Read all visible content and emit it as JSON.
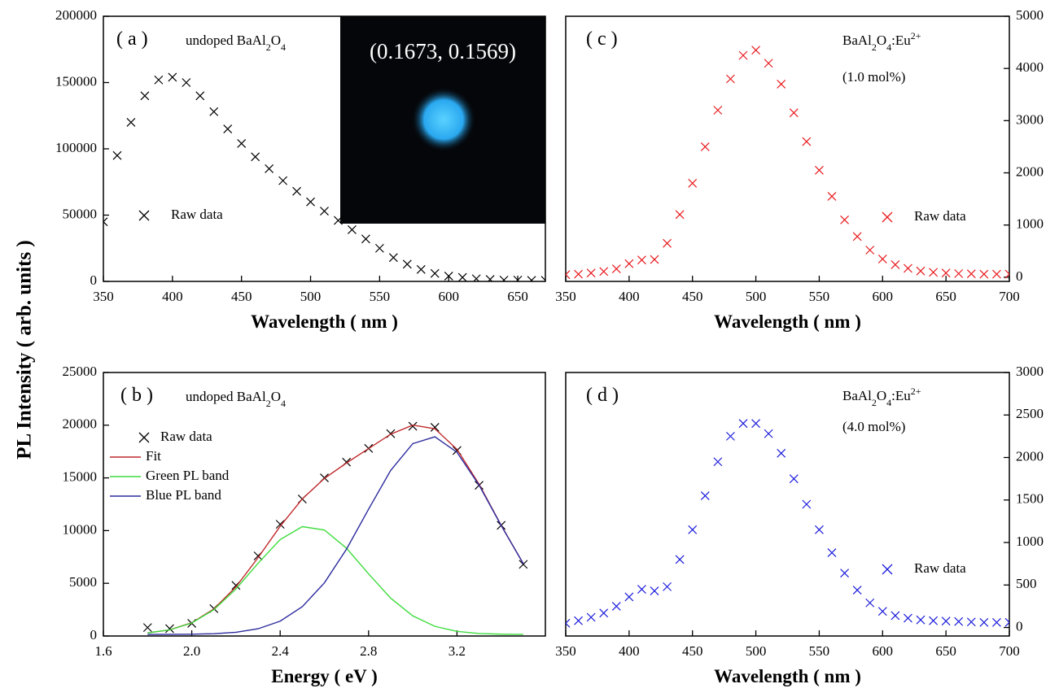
{
  "shared_ylabel": "PL Intensity ( arb. units )",
  "chart_data": [
    {
      "type": "scatter",
      "panel_label": "( a )",
      "sample_label": [
        {
          "text": "undoped BaAl"
        },
        {
          "text": "2",
          "script": "sub"
        },
        {
          "text": "O"
        },
        {
          "text": "4",
          "script": "sub"
        }
      ],
      "inset_label": "(0.1673, 0.1569)",
      "xlabel": "Wavelength ( nm )",
      "y_axis_side": "left",
      "xlim": [
        350,
        670
      ],
      "xticks": [
        350,
        400,
        450,
        500,
        550,
        600,
        650
      ],
      "ylim": [
        0,
        200000
      ],
      "yticks": [
        0,
        50000,
        100000,
        150000,
        200000
      ],
      "x": [
        350,
        360,
        370,
        380,
        390,
        400,
        410,
        420,
        430,
        440,
        450,
        460,
        470,
        480,
        490,
        500,
        510,
        520,
        530,
        540,
        550,
        560,
        570,
        580,
        590,
        600,
        610,
        620,
        630,
        640,
        650,
        660,
        670
      ],
      "series": [
        {
          "name": "Raw data",
          "color": "#000000",
          "mode": "markers",
          "values": [
            45000,
            95000,
            120000,
            140000,
            152000,
            154000,
            150000,
            140000,
            128000,
            115000,
            104000,
            94000,
            85000,
            76000,
            68000,
            60000,
            53000,
            46000,
            39000,
            32000,
            25000,
            18000,
            13000,
            9000,
            6000,
            4000,
            3000,
            2000,
            1500,
            1000,
            1000,
            800,
            800
          ]
        }
      ]
    },
    {
      "type": "line",
      "panel_label": "( b )",
      "sample_label": [
        {
          "text": "undoped BaAl"
        },
        {
          "text": "2",
          "script": "sub"
        },
        {
          "text": "O"
        },
        {
          "text": "4",
          "script": "sub"
        }
      ],
      "xlabel": "Energy ( eV )",
      "y_axis_side": "left",
      "xlim": [
        1.6,
        3.6
      ],
      "xticks": [
        1.6,
        {
          "value": 2,
          "label": "2.0"
        },
        2.4,
        2.8,
        3.2
      ],
      "ylim": [
        0,
        25000
      ],
      "yticks": [
        0,
        5000,
        10000,
        15000,
        20000,
        25000
      ],
      "x": [
        1.8,
        1.9,
        2.0,
        2.1,
        2.2,
        2.3,
        2.4,
        2.5,
        2.6,
        2.7,
        2.8,
        2.9,
        3.0,
        3.1,
        3.2,
        3.3,
        3.4,
        3.5
      ],
      "series": [
        {
          "name": "Raw data",
          "color": "#000000",
          "mode": "markers",
          "values": [
            800,
            700,
            1200,
            2600,
            4800,
            7600,
            10600,
            13000,
            15000,
            16500,
            17800,
            19200,
            19900,
            19800,
            17600,
            14300,
            10500,
            6800
          ]
        },
        {
          "name": "Fit",
          "color": "#c0292b",
          "mode": "lines",
          "values": [
            295,
            586,
            1256,
            2563,
            4668,
            7435,
            10410,
            13005,
            14950,
            16415,
            17780,
            19150,
            20010,
            19665,
            17715,
            14400,
            10504,
            6866
          ]
        },
        {
          "name": "Green PL band",
          "color": "#3ddc3d",
          "mode": "lines",
          "values": [
            295,
            580,
            1235,
            2495,
            4465,
            6900,
            9150,
            10375,
            10060,
            8330,
            5900,
            3590,
            1910,
            915,
            435,
            240,
            174,
            156
          ]
        },
        {
          "name": "Blue PL band",
          "color": "#2b2b9e",
          "mode": "lines",
          "values": [
            150,
            156,
            171,
            218,
            353,
            685,
            1410,
            2780,
            5040,
            8235,
            12030,
            15710,
            18250,
            18900,
            17430,
            14310,
            10480,
            6860
          ]
        }
      ]
    },
    {
      "type": "scatter",
      "panel_label": "( c )",
      "sample_label": [
        {
          "text": "BaAl"
        },
        {
          "text": "2",
          "script": "sub"
        },
        {
          "text": "O"
        },
        {
          "text": "4",
          "script": "sub"
        },
        {
          "text": ":Eu"
        },
        {
          "text": "2+",
          "script": "super"
        }
      ],
      "concentration": "(1.0 mol%)",
      "xlabel": "Wavelength ( nm )",
      "y_axis_side": "right",
      "xlim": [
        350,
        700
      ],
      "xticks": [
        350,
        400,
        450,
        500,
        550,
        600,
        650,
        700
      ],
      "ylim": [
        -80,
        5000
      ],
      "yticks": [
        0,
        1000,
        2000,
        3000,
        4000,
        5000
      ],
      "x": [
        350,
        360,
        370,
        380,
        390,
        400,
        410,
        420,
        430,
        440,
        450,
        460,
        470,
        480,
        490,
        500,
        510,
        520,
        530,
        540,
        550,
        560,
        570,
        580,
        590,
        600,
        610,
        620,
        630,
        640,
        650,
        660,
        670,
        680,
        690,
        700
      ],
      "series": [
        {
          "name": "Raw data",
          "color": "#e8191c",
          "mode": "markers",
          "values": [
            50,
            60,
            80,
            110,
            160,
            260,
            330,
            340,
            650,
            1200,
            1800,
            2500,
            3200,
            3800,
            4250,
            4350,
            4100,
            3700,
            3150,
            2600,
            2050,
            1550,
            1100,
            780,
            520,
            350,
            240,
            170,
            120,
            95,
            80,
            70,
            65,
            60,
            60,
            60
          ]
        }
      ]
    },
    {
      "type": "scatter",
      "panel_label": "( d )",
      "sample_label": [
        {
          "text": "BaAl"
        },
        {
          "text": "2",
          "script": "sub"
        },
        {
          "text": "O"
        },
        {
          "text": "4",
          "script": "sub"
        },
        {
          "text": ":Eu"
        },
        {
          "text": "2+",
          "script": "super"
        }
      ],
      "concentration": "(4.0 mol%)",
      "xlabel": "Wavelength ( nm )",
      "y_axis_side": "right",
      "xlim": [
        350,
        700
      ],
      "xticks": [
        350,
        400,
        450,
        500,
        550,
        600,
        650,
        700
      ],
      "ylim": [
        -100,
        3000
      ],
      "yticks": [
        0,
        500,
        1000,
        1500,
        2000,
        2500,
        3000
      ],
      "x": [
        350,
        360,
        370,
        380,
        390,
        400,
        410,
        420,
        430,
        440,
        450,
        460,
        470,
        480,
        490,
        500,
        510,
        520,
        530,
        540,
        550,
        560,
        570,
        580,
        590,
        600,
        610,
        620,
        630,
        640,
        650,
        660,
        670,
        680,
        690,
        700
      ],
      "series": [
        {
          "name": "Raw data",
          "color": "#1a1adb",
          "mode": "markers",
          "values": [
            50,
            80,
            120,
            170,
            250,
            360,
            450,
            430,
            480,
            800,
            1150,
            1550,
            1950,
            2250,
            2400,
            2400,
            2280,
            2050,
            1750,
            1450,
            1150,
            880,
            640,
            440,
            290,
            190,
            140,
            110,
            90,
            80,
            75,
            70,
            65,
            60,
            60,
            60
          ]
        }
      ]
    }
  ]
}
